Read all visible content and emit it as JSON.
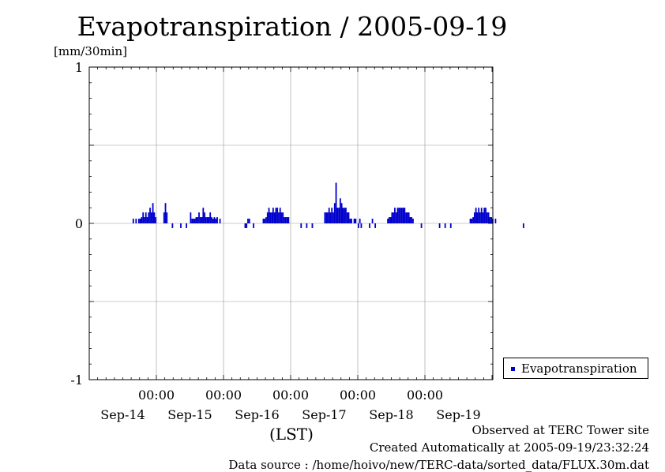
{
  "chart_data": {
    "type": "bar",
    "title": "Evapotranspiration / 2005-09-19",
    "ylabel": "[mm/30min]",
    "xlabel": "(LST)",
    "ylim": [
      -1,
      1
    ],
    "y_ticks": [
      "1",
      "0",
      "-1"
    ],
    "x_time_labels": [
      "00:00",
      "00:00",
      "00:00",
      "00:00",
      "00:00"
    ],
    "x_date_labels": [
      "Sep-14",
      "Sep-15",
      "Sep-16",
      "Sep-17",
      "Sep-18",
      "Sep-19"
    ],
    "x_start": "2005-09-14 00:00",
    "interval_minutes": 30,
    "grid": true,
    "legend_position": "bottom-right",
    "series": [
      {
        "name": "Evapotranspiration",
        "color": "#0000cc",
        "values": [
          0,
          0,
          0,
          0,
          0,
          0,
          0,
          0,
          0,
          0,
          0,
          0,
          0,
          0,
          0,
          0,
          0,
          0,
          0,
          0,
          0,
          0,
          0,
          0,
          0,
          0,
          0,
          0,
          0,
          0,
          0,
          0.03,
          0,
          0.03,
          0,
          0.03,
          0.03,
          0.04,
          0.07,
          0.04,
          0.07,
          0.04,
          0.07,
          0.1,
          0.07,
          0.13,
          0.07,
          0.04,
          0,
          0,
          0,
          0,
          0,
          0.07,
          0.13,
          0.07,
          0,
          0,
          0,
          -0.03,
          0,
          0,
          0,
          0,
          0,
          -0.03,
          0,
          0,
          0,
          -0.03,
          0,
          0,
          0.07,
          0.03,
          0.03,
          0.03,
          0.04,
          0.04,
          0.07,
          0.04,
          0.04,
          0.1,
          0.07,
          0.04,
          0.04,
          0.04,
          0.07,
          0.04,
          0.03,
          0.04,
          0.03,
          0.04,
          0,
          0.03,
          0,
          0,
          0,
          0,
          0,
          0,
          0,
          0,
          0,
          0,
          0,
          0,
          0,
          0,
          0,
          0,
          0,
          -0.03,
          -0.03,
          0.03,
          0.03,
          0,
          0,
          -0.03,
          0,
          0,
          0,
          0,
          0,
          0,
          0.03,
          0.03,
          0.04,
          0.07,
          0.1,
          0.07,
          0.07,
          0.1,
          0.07,
          0.1,
          0.1,
          0.07,
          0.1,
          0.07,
          0.07,
          0.04,
          0.04,
          0.04,
          0.04,
          0,
          0,
          0,
          0,
          0,
          0,
          0,
          0,
          -0.03,
          0,
          0,
          0,
          -0.03,
          0,
          0,
          0,
          -0.03,
          0,
          0,
          0,
          0,
          0,
          0,
          0,
          0,
          0.07,
          0.07,
          0.07,
          0.1,
          0.07,
          0.1,
          0.07,
          0.13,
          0.26,
          0.1,
          0.1,
          0.16,
          0.13,
          0.1,
          0.1,
          0.1,
          0.07,
          0.07,
          0.03,
          0.03,
          0,
          0.03,
          0.03,
          0,
          -0.03,
          0.03,
          -0.03,
          0,
          0,
          0,
          0,
          0,
          -0.03,
          0,
          0.03,
          0,
          -0.03,
          0,
          0,
          0,
          0,
          0,
          0,
          0,
          0,
          0.03,
          0.04,
          0.04,
          0.07,
          0.07,
          0.1,
          0.07,
          0.1,
          0.1,
          0.1,
          0.1,
          0.1,
          0.1,
          0.07,
          0.07,
          0.07,
          0.04,
          0.04,
          0.03,
          0,
          0,
          0,
          0,
          0,
          -0.03,
          0,
          0,
          0,
          0,
          0,
          0,
          0,
          0,
          0,
          0,
          0,
          0,
          -0.03,
          0,
          0,
          0,
          -0.03,
          0,
          0,
          0,
          -0.03,
          0,
          0,
          0,
          0,
          0,
          0,
          0,
          0,
          0,
          0,
          0,
          0,
          0,
          0.03,
          0.03,
          0.04,
          0.07,
          0.1,
          0.07,
          0.1,
          0.07,
          0.1,
          0.07,
          0.1,
          0.1,
          0.07,
          0.07,
          0.04,
          0.04,
          0.03,
          0,
          0.03,
          0,
          0,
          0,
          0,
          0,
          0,
          0,
          0,
          0,
          0,
          0,
          0,
          0,
          0,
          0,
          0,
          0,
          0,
          0,
          -0.03,
          0
        ]
      }
    ]
  },
  "legend": {
    "label": "Evapotranspiration",
    "color": "#0000cc"
  },
  "footer": {
    "line1": "Observed at TERC Tower site",
    "line2": "Created Automatically at 2005-09-19/23:32:24",
    "line3": "Data source : /home/hoivo/new/TERC-data/sorted_data/FLUX.30m.dat"
  }
}
